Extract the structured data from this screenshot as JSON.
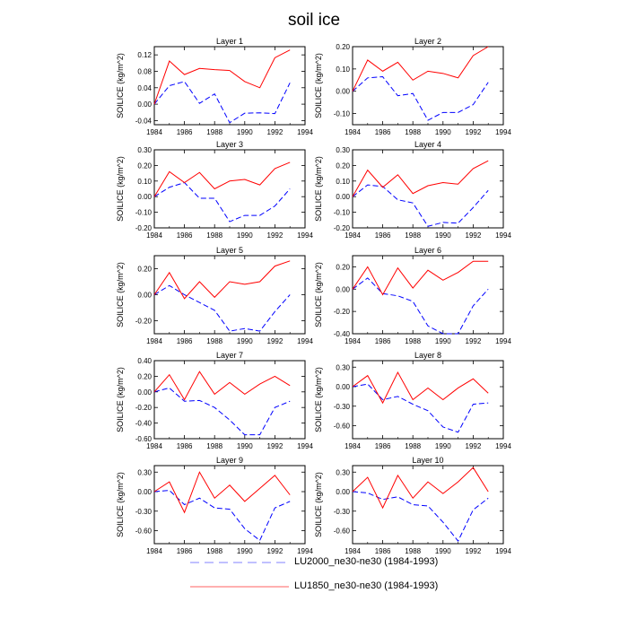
{
  "figure_title": "soil ice",
  "chart_data": [
    {
      "type": "line",
      "title": "Layer 1",
      "ylabel": "SOILICE (kg/m^2)",
      "x": [
        1984,
        1985,
        1986,
        1987,
        1988,
        1989,
        1990,
        1991,
        1992,
        1993
      ],
      "xlim": [
        1984,
        1994
      ],
      "xticks": [
        1984,
        1986,
        1988,
        1990,
        1992,
        1994
      ],
      "ylim": [
        -0.05,
        0.14
      ],
      "yticks": [
        -0.04,
        0,
        0.04,
        0.08,
        0.12
      ],
      "ytick_labels": [
        "-0.04",
        "0.00",
        "0.04",
        "0.08",
        "0.12"
      ],
      "series": [
        {
          "name": "LU2000_ne30-ne30 (1984-1993)",
          "color": "#0000ff",
          "dash": true,
          "values": [
            0,
            0.045,
            0.055,
            0.002,
            0.025,
            -0.045,
            -0.022,
            -0.021,
            -0.023,
            0.052
          ]
        },
        {
          "name": "LU1850_ne30-ne30 (1984-1993)",
          "color": "#ff0000",
          "dash": false,
          "values": [
            0,
            0.105,
            0.072,
            0.087,
            0.084,
            0.082,
            0.055,
            0.04,
            0.113,
            0.132
          ]
        }
      ]
    },
    {
      "type": "line",
      "title": "Layer 2",
      "ylabel": "SOILICE (kg/m^2)",
      "x": [
        1984,
        1985,
        1986,
        1987,
        1988,
        1989,
        1990,
        1991,
        1992,
        1993
      ],
      "xlim": [
        1984,
        1994
      ],
      "xticks": [
        1984,
        1986,
        1988,
        1990,
        1992,
        1994
      ],
      "ylim": [
        -0.15,
        0.2
      ],
      "yticks": [
        -0.1,
        0,
        0.1,
        0.2
      ],
      "ytick_labels": [
        "-0.10",
        "0.00",
        "0.10",
        "0.20"
      ],
      "series": [
        {
          "name": "LU2000_ne30-ne30 (1984-1993)",
          "color": "#0000ff",
          "dash": true,
          "values": [
            0,
            0.06,
            0.065,
            -0.02,
            -0.01,
            -0.13,
            -0.095,
            -0.095,
            -0.06,
            0.04
          ]
        },
        {
          "name": "LU1850_ne30-ne30 (1984-1993)",
          "color": "#ff0000",
          "dash": false,
          "values": [
            0,
            0.14,
            0.09,
            0.13,
            0.05,
            0.09,
            0.08,
            0.06,
            0.16,
            0.2
          ]
        }
      ]
    },
    {
      "type": "line",
      "title": "Layer 3",
      "ylabel": "SOILICE (kg/m^2)",
      "x": [
        1984,
        1985,
        1986,
        1987,
        1988,
        1989,
        1990,
        1991,
        1992,
        1993
      ],
      "xlim": [
        1984,
        1994
      ],
      "xticks": [
        1984,
        1986,
        1988,
        1990,
        1992,
        1994
      ],
      "ylim": [
        -0.2,
        0.3
      ],
      "yticks": [
        -0.2,
        -0.1,
        0,
        0.1,
        0.2,
        0.3
      ],
      "ytick_labels": [
        "-0.20",
        "-0.10",
        "0.00",
        "0.10",
        "0.20",
        "0.30"
      ],
      "series": [
        {
          "name": "LU2000_ne30-ne30 (1984-1993)",
          "color": "#0000ff",
          "dash": true,
          "values": [
            0,
            0.06,
            0.09,
            -0.01,
            -0.01,
            -0.16,
            -0.12,
            -0.12,
            -0.06,
            0.05
          ]
        },
        {
          "name": "LU1850_ne30-ne30 (1984-1993)",
          "color": "#ff0000",
          "dash": false,
          "values": [
            0,
            0.16,
            0.09,
            0.155,
            0.05,
            0.1,
            0.11,
            0.075,
            0.18,
            0.22
          ]
        }
      ]
    },
    {
      "type": "line",
      "title": "Layer 4",
      "ylabel": "SOILICE (kg/m^2)",
      "x": [
        1984,
        1985,
        1986,
        1987,
        1988,
        1989,
        1990,
        1991,
        1992,
        1993
      ],
      "xlim": [
        1984,
        1994
      ],
      "xticks": [
        1984,
        1986,
        1988,
        1990,
        1992,
        1994
      ],
      "ylim": [
        -0.2,
        0.3
      ],
      "yticks": [
        -0.2,
        -0.1,
        0,
        0.1,
        0.2,
        0.3
      ],
      "ytick_labels": [
        "-0.20",
        "-0.10",
        "0.00",
        "0.10",
        "0.20",
        "0.30"
      ],
      "series": [
        {
          "name": "LU2000_ne30-ne30 (1984-1993)",
          "color": "#0000ff",
          "dash": true,
          "values": [
            0,
            0.075,
            0.065,
            -0.02,
            -0.04,
            -0.19,
            -0.165,
            -0.17,
            -0.07,
            0.04
          ]
        },
        {
          "name": "LU1850_ne30-ne30 (1984-1993)",
          "color": "#ff0000",
          "dash": false,
          "values": [
            0,
            0.17,
            0.06,
            0.14,
            0.02,
            0.07,
            0.09,
            0.08,
            0.18,
            0.23
          ]
        }
      ]
    },
    {
      "type": "line",
      "title": "Layer 5",
      "ylabel": "SOILICE (kg/m^2)",
      "x": [
        1984,
        1985,
        1986,
        1987,
        1988,
        1989,
        1990,
        1991,
        1992,
        1993
      ],
      "xlim": [
        1984,
        1994
      ],
      "xticks": [
        1984,
        1986,
        1988,
        1990,
        1992,
        1994
      ],
      "ylim": [
        -0.3,
        0.3
      ],
      "yticks": [
        -0.2,
        0,
        0.2
      ],
      "ytick_labels": [
        "-0.20",
        "0.00",
        "0.20"
      ],
      "series": [
        {
          "name": "LU2000_ne30-ne30 (1984-1993)",
          "color": "#0000ff",
          "dash": true,
          "values": [
            0,
            0.07,
            0,
            -0.06,
            -0.12,
            -0.28,
            -0.26,
            -0.28,
            -0.13,
            0
          ]
        },
        {
          "name": "LU1850_ne30-ne30 (1984-1993)",
          "color": "#ff0000",
          "dash": false,
          "values": [
            0,
            0.17,
            -0.03,
            0.1,
            -0.02,
            0.1,
            0.08,
            0.1,
            0.22,
            0.26
          ]
        }
      ]
    },
    {
      "type": "line",
      "title": "Layer 6",
      "ylabel": "SOILICE (kg/m^2)",
      "x": [
        1984,
        1985,
        1986,
        1987,
        1988,
        1989,
        1990,
        1991,
        1992,
        1993
      ],
      "xlim": [
        1984,
        1994
      ],
      "xticks": [
        1984,
        1986,
        1988,
        1990,
        1992,
        1994
      ],
      "ylim": [
        -0.4,
        0.3
      ],
      "yticks": [
        -0.4,
        -0.2,
        0,
        0.2
      ],
      "ytick_labels": [
        "-0.40",
        "-0.20",
        "0.00",
        "0.20"
      ],
      "series": [
        {
          "name": "LU2000_ne30-ne30 (1984-1993)",
          "color": "#0000ff",
          "dash": true,
          "values": [
            0,
            0.1,
            -0.04,
            -0.06,
            -0.11,
            -0.33,
            -0.4,
            -0.4,
            -0.15,
            0
          ]
        },
        {
          "name": "LU1850_ne30-ne30 (1984-1993)",
          "color": "#ff0000",
          "dash": false,
          "values": [
            0,
            0.2,
            -0.05,
            0.19,
            0.01,
            0.17,
            0.08,
            0.15,
            0.25,
            0.25
          ]
        }
      ]
    },
    {
      "type": "line",
      "title": "Layer 7",
      "ylabel": "SOILICE (kg/m^2)",
      "x": [
        1984,
        1985,
        1986,
        1987,
        1988,
        1989,
        1990,
        1991,
        1992,
        1993
      ],
      "xlim": [
        1984,
        1994
      ],
      "xticks": [
        1984,
        1986,
        1988,
        1990,
        1992,
        1994
      ],
      "ylim": [
        -0.6,
        0.4
      ],
      "yticks": [
        -0.6,
        -0.4,
        -0.2,
        0,
        0.2,
        0.4
      ],
      "ytick_labels": [
        "-0.60",
        "-0.40",
        "-0.20",
        "0.00",
        "0.20",
        "0.40"
      ],
      "series": [
        {
          "name": "LU2000_ne30-ne30 (1984-1993)",
          "color": "#0000ff",
          "dash": true,
          "values": [
            0,
            0.05,
            -0.12,
            -0.11,
            -0.2,
            -0.36,
            -0.55,
            -0.55,
            -0.2,
            -0.12
          ]
        },
        {
          "name": "LU1850_ne30-ne30 (1984-1993)",
          "color": "#ff0000",
          "dash": false,
          "values": [
            0,
            0.22,
            -0.1,
            0.26,
            -0.03,
            0.12,
            -0.03,
            0.1,
            0.2,
            0.08
          ]
        }
      ]
    },
    {
      "type": "line",
      "title": "Layer 8",
      "ylabel": "SOILICE (kg/m^2)",
      "x": [
        1984,
        1985,
        1986,
        1987,
        1988,
        1989,
        1990,
        1991,
        1992,
        1993
      ],
      "xlim": [
        1984,
        1994
      ],
      "xticks": [
        1984,
        1986,
        1988,
        1990,
        1992,
        1994
      ],
      "ylim": [
        -0.8,
        0.4
      ],
      "yticks": [
        -0.6,
        -0.3,
        0,
        0.3
      ],
      "ytick_labels": [
        "-0.60",
        "-0.30",
        "0.00",
        "0.30"
      ],
      "series": [
        {
          "name": "LU2000_ne30-ne30 (1984-1993)",
          "color": "#0000ff",
          "dash": true,
          "values": [
            0,
            0.04,
            -0.2,
            -0.15,
            -0.27,
            -0.37,
            -0.62,
            -0.7,
            -0.27,
            -0.25
          ]
        },
        {
          "name": "LU1850_ne30-ne30 (1984-1993)",
          "color": "#ff0000",
          "dash": false,
          "values": [
            0,
            0.17,
            -0.25,
            0.22,
            -0.2,
            -0.02,
            -0.2,
            -0.02,
            0.12,
            -0.1
          ]
        }
      ]
    },
    {
      "type": "line",
      "title": "Layer 9",
      "ylabel": "SOILICE (kg/m^2)",
      "x": [
        1984,
        1985,
        1986,
        1987,
        1988,
        1989,
        1990,
        1991,
        1992,
        1993
      ],
      "xlim": [
        1984,
        1994
      ],
      "xticks": [
        1984,
        1986,
        1988,
        1990,
        1992,
        1994
      ],
      "ylim": [
        -0.8,
        0.4
      ],
      "yticks": [
        -0.6,
        -0.3,
        0,
        0.3
      ],
      "ytick_labels": [
        "-0.60",
        "-0.30",
        "0.00",
        "0.30"
      ],
      "series": [
        {
          "name": "LU2000_ne30-ne30 (1984-1993)",
          "color": "#0000ff",
          "dash": true,
          "values": [
            0,
            0.02,
            -0.2,
            -0.1,
            -0.25,
            -0.27,
            -0.57,
            -0.75,
            -0.25,
            -0.15
          ]
        },
        {
          "name": "LU1850_ne30-ne30 (1984-1993)",
          "color": "#ff0000",
          "dash": false,
          "values": [
            0,
            0.15,
            -0.32,
            0.3,
            -0.1,
            0.1,
            -0.15,
            0.05,
            0.25,
            -0.05
          ]
        }
      ]
    },
    {
      "type": "line",
      "title": "Layer 10",
      "ylabel": "SOILICE (kg/m^2)",
      "x": [
        1984,
        1985,
        1986,
        1987,
        1988,
        1989,
        1990,
        1991,
        1992,
        1993
      ],
      "xlim": [
        1984,
        1994
      ],
      "xticks": [
        1984,
        1986,
        1988,
        1990,
        1992,
        1994
      ],
      "ylim": [
        -0.8,
        0.4
      ],
      "yticks": [
        -0.6,
        -0.3,
        0,
        0.3
      ],
      "ytick_labels": [
        "-0.60",
        "-0.30",
        "0.00",
        "0.30"
      ],
      "series": [
        {
          "name": "LU2000_ne30-ne30 (1984-1993)",
          "color": "#0000ff",
          "dash": true,
          "values": [
            0,
            -0.02,
            -0.12,
            -0.08,
            -0.2,
            -0.22,
            -0.47,
            -0.76,
            -0.28,
            -0.1
          ]
        },
        {
          "name": "LU1850_ne30-ne30 (1984-1993)",
          "color": "#ff0000",
          "dash": false,
          "values": [
            0,
            0.22,
            -0.25,
            0.25,
            -0.1,
            0.15,
            -0.03,
            0.15,
            0.37,
            0
          ]
        }
      ]
    }
  ],
  "legend": [
    {
      "label": "LU2000_ne30-ne30 (1984-1993)",
      "color": "#8080ff",
      "dash": true
    },
    {
      "label": "LU1850_ne30-ne30 (1984-1993)",
      "color": "#ff6060",
      "dash": false
    }
  ]
}
